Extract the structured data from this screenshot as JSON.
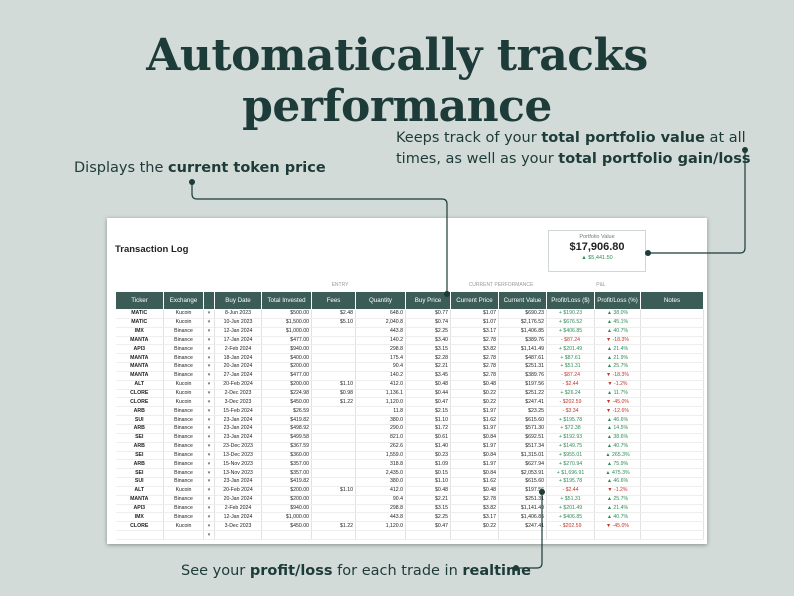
{
  "headline": "Automatically tracks performance",
  "callouts": {
    "left_pre": "Displays the ",
    "left_bold": "current token price",
    "right_pre": "Keeps track of your ",
    "right_bold1": "total portfolio value",
    "right_mid": " at all times, as well as your ",
    "right_bold2": "total portfolio gain/loss",
    "bottom_pre": "See your ",
    "bottom_bold1": "profit/loss",
    "bottom_mid": " for each trade in ",
    "bottom_bold2": "realtime"
  },
  "sheet": {
    "title": "Transaction Log",
    "portfolio": {
      "label": "Portfolio Value",
      "value": "$17,906.80",
      "gain": "$5,441.50"
    },
    "groups": {
      "entry": "ENTRY",
      "current": "CURRENT PERFORMANCE",
      "pl": "P&L"
    },
    "columns": [
      "Ticker",
      "Exchange",
      "",
      "Buy Date",
      "Total Invested",
      "Fees",
      "Quantity",
      "Buy Price",
      "Current Price",
      "Current Value",
      "Profit/Loss ($)",
      "Profit/Loss (%)",
      "Notes"
    ],
    "rows": [
      [
        "MATIC",
        "Kucoin",
        "8-Jun 2023",
        "$500.00",
        "$2.48",
        "648.0",
        "$0.77",
        "$1.07",
        "$690.23",
        "+ $190.23",
        "▲ 38.0%"
      ],
      [
        "MATIC",
        "Kucoin",
        "10-Jun 2023",
        "$1,500.00",
        "$5.10",
        "2,040.8",
        "$0.74",
        "$1.07",
        "$2,176.52",
        "+ $676.52",
        "▲ 45.1%"
      ],
      [
        "IMX",
        "Binance",
        "12-Jan 2024",
        "$1,000.00",
        "",
        "443.8",
        "$2.25",
        "$3.17",
        "$1,406.85",
        "+ $406.85",
        "▲ 40.7%"
      ],
      [
        "MANTA",
        "Binance",
        "17-Jan 2024",
        "$477.00",
        "",
        "140.2",
        "$3.40",
        "$2.78",
        "$389.76",
        "- $87.24",
        "▼ -18.3%"
      ],
      [
        "API3",
        "Binance",
        "2-Feb 2024",
        "$940.00",
        "",
        "298.8",
        "$3.15",
        "$3.82",
        "$1,141.49",
        "+ $201.49",
        "▲ 21.4%"
      ],
      [
        "MANTA",
        "Binance",
        "18-Jan 2024",
        "$400.00",
        "",
        "175.4",
        "$2.28",
        "$2.78",
        "$487.61",
        "+ $87.61",
        "▲ 21.9%"
      ],
      [
        "MANTA",
        "Binance",
        "20-Jan 2024",
        "$200.00",
        "",
        "90.4",
        "$2.21",
        "$2.78",
        "$251.31",
        "+ $51.31",
        "▲ 25.7%"
      ],
      [
        "MANTA",
        "Binance",
        "27-Jan 2024",
        "$477.00",
        "",
        "140.2",
        "$3.45",
        "$2.78",
        "$389.76",
        "- $87.24",
        "▼ -18.3%"
      ],
      [
        "ALT",
        "Kucoin",
        "20-Feb 2024",
        "$200.00",
        "$1.10",
        "412.0",
        "$0.48",
        "$0.48",
        "$197.56",
        "- $2.44",
        "▼ -1.2%"
      ],
      [
        "CLORE",
        "Kucoin",
        "2-Dec 2023",
        "$224.98",
        "$0.98",
        "1,136.1",
        "$0.44",
        "$0.22",
        "$251.22",
        "+ $26.24",
        "▲ 11.7%"
      ],
      [
        "CLORE",
        "Kucoin",
        "3-Dec 2023",
        "$450.00",
        "$1.22",
        "1,120.0",
        "$0.47",
        "$0.22",
        "$247.41",
        "- $202.59",
        "▼ -45.0%"
      ],
      [
        "ARB",
        "Binance",
        "15-Feb 2024",
        "$26.59",
        "",
        "11.8",
        "$2.15",
        "$1.97",
        "$23.25",
        "- $3.34",
        "▼ -12.6%"
      ],
      [
        "SUI",
        "Binance",
        "23-Jan 2024",
        "$419.82",
        "",
        "380.0",
        "$1.10",
        "$1.62",
        "$615.60",
        "+ $195.78",
        "▲ 46.6%"
      ],
      [
        "ARB",
        "Binance",
        "23-Jan 2024",
        "$498.92",
        "",
        "290.0",
        "$1.72",
        "$1.97",
        "$571.30",
        "+ $72.38",
        "▲ 14.5%"
      ],
      [
        "SEI",
        "Binance",
        "23-Jan 2024",
        "$499.58",
        "",
        "821.0",
        "$0.61",
        "$0.84",
        "$692.51",
        "+ $192.93",
        "▲ 38.6%"
      ],
      [
        "ARB",
        "Binance",
        "23-Dec 2023",
        "$367.59",
        "",
        "262.6",
        "$1.40",
        "$1.97",
        "$517.34",
        "+ $149.75",
        "▲ 40.7%"
      ],
      [
        "SEI",
        "Binance",
        "13-Dec 2023",
        "$360.00",
        "",
        "1,559.0",
        "$0.23",
        "$0.84",
        "$1,315.01",
        "+ $955.01",
        "▲ 265.3%"
      ],
      [
        "ARB",
        "Binance",
        "15-Nov 2023",
        "$357.00",
        "",
        "318.8",
        "$1.09",
        "$1.97",
        "$627.94",
        "+ $270.94",
        "▲ 75.9%"
      ],
      [
        "SEI",
        "Binance",
        "13-Nov 2023",
        "$357.00",
        "",
        "2,435.0",
        "$0.15",
        "$0.84",
        "$2,053.91",
        "+ $1,696.91",
        "▲ 475.3%"
      ],
      [
        "SUI",
        "Binance",
        "23-Jan 2024",
        "$419.82",
        "",
        "380.0",
        "$1.10",
        "$1.62",
        "$615.60",
        "+ $195.78",
        "▲ 46.6%"
      ],
      [
        "ALT",
        "Kucoin",
        "20-Feb 2024",
        "$200.00",
        "$1.10",
        "412.0",
        "$0.48",
        "$0.48",
        "$197.56",
        "- $2.44",
        "▼ -1.2%"
      ],
      [
        "MANTA",
        "Binance",
        "20-Jan 2024",
        "$200.00",
        "",
        "90.4",
        "$2.21",
        "$2.78",
        "$251.31",
        "+ $51.31",
        "▲ 25.7%"
      ],
      [
        "API3",
        "Binance",
        "2-Feb 2024",
        "$940.00",
        "",
        "298.8",
        "$3.15",
        "$3.82",
        "$1,141.49",
        "+ $201.49",
        "▲ 21.4%"
      ],
      [
        "IMX",
        "Binance",
        "12-Jan 2024",
        "$1,000.00",
        "",
        "443.8",
        "$2.25",
        "$3.17",
        "$1,406.85",
        "+ $406.85",
        "▲ 40.7%"
      ],
      [
        "CLORE",
        "Kucoin",
        "3-Dec 2023",
        "$450.00",
        "$1.22",
        "1,120.0",
        "$0.47",
        "$0.22",
        "$247.41",
        "- $202.59",
        "▼ -45.0%"
      ],
      [
        "",
        "",
        "",
        "",
        "",
        "",
        "",
        "",
        "",
        "",
        ""
      ]
    ],
    "colors": {
      "header": "#3b5c57",
      "positive": "#2e8b57",
      "negative": "#c0392b"
    }
  }
}
